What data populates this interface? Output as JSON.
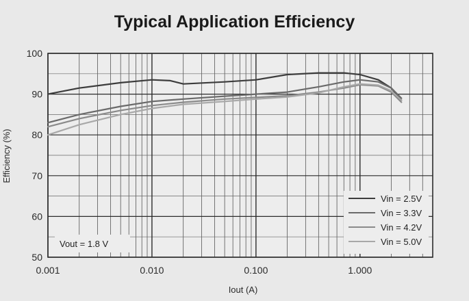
{
  "chart_data": {
    "type": "line",
    "title": "Typical Application Efficiency",
    "xlabel": "Iout (A)",
    "ylabel": "Efficiency (%)",
    "x_scale": "log",
    "xlim": [
      0.001,
      5
    ],
    "ylim": [
      50,
      100
    ],
    "x_ticks": [
      "0.001",
      "0.010",
      "0.100",
      "1.000"
    ],
    "y_ticks": [
      "50",
      "60",
      "70",
      "80",
      "90",
      "100"
    ],
    "grid": true,
    "legend_position": "bottom-right",
    "annotation": "Vout = 1.8 V",
    "series": [
      {
        "name": "Vin = 2.5V",
        "color": "#3c3c3c",
        "x": [
          0.001,
          0.002,
          0.005,
          0.01,
          0.015,
          0.02,
          0.05,
          0.1,
          0.2,
          0.4,
          0.7,
          1.0,
          1.5,
          2.0,
          2.5
        ],
        "y": [
          90.0,
          91.5,
          92.8,
          93.5,
          93.3,
          92.5,
          93.0,
          93.5,
          94.8,
          95.2,
          95.2,
          94.8,
          93.5,
          91.5,
          88.5
        ]
      },
      {
        "name": "Vin = 3.3V",
        "color": "#6a6a6a",
        "x": [
          0.001,
          0.002,
          0.005,
          0.01,
          0.02,
          0.05,
          0.1,
          0.2,
          0.4,
          0.7,
          1.0,
          1.5,
          2.0,
          2.5
        ],
        "y": [
          83.0,
          85.0,
          87.0,
          88.2,
          88.8,
          89.5,
          90.0,
          90.5,
          91.8,
          93.0,
          93.5,
          93.0,
          91.5,
          89.0
        ]
      },
      {
        "name": "Vin = 4.2V",
        "color": "#8a8a8a",
        "x": [
          0.001,
          0.002,
          0.005,
          0.01,
          0.02,
          0.05,
          0.1,
          0.2,
          0.4,
          0.7,
          1.0,
          1.5,
          2.0,
          2.5
        ],
        "y": [
          82.0,
          84.0,
          86.0,
          87.2,
          88.0,
          88.8,
          89.2,
          89.6,
          90.5,
          91.5,
          92.3,
          92.0,
          90.5,
          88.0
        ]
      },
      {
        "name": "Vin = 5.0V",
        "color": "#a8a8a8",
        "x": [
          0.001,
          0.002,
          0.005,
          0.01,
          0.02,
          0.05,
          0.1,
          0.2,
          0.4,
          0.7,
          1.0,
          1.5,
          2.0,
          2.5
        ],
        "y": [
          80.0,
          82.5,
          85.0,
          86.5,
          87.5,
          88.2,
          88.8,
          89.3,
          90.3,
          91.8,
          92.5,
          92.2,
          90.8,
          88.5
        ]
      }
    ]
  }
}
